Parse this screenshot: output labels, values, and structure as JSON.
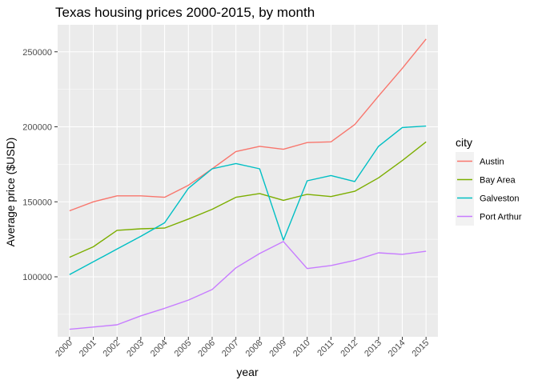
{
  "chart_data": {
    "type": "line",
    "title": "Texas housing prices 2000-2015, by month",
    "xlabel": "year",
    "ylabel": "Average price ($USD)",
    "x": [
      "2000",
      "2001",
      "2002",
      "2003",
      "2004",
      "2005",
      "2006",
      "2007",
      "2008",
      "2009",
      "2010",
      "2011",
      "2012",
      "2013",
      "2014",
      "2015"
    ],
    "ylim": [
      60000,
      268000
    ],
    "yticks": [
      100000,
      150000,
      200000,
      250000
    ],
    "ytick_labels": [
      "100000",
      "150000",
      "200000",
      "250000"
    ],
    "grid": true,
    "legend": {
      "title": "city",
      "placement": "right"
    },
    "series": [
      {
        "name": "Austin",
        "color": "#F8766D",
        "values": [
          144000,
          150000,
          154000,
          154000,
          153000,
          161000,
          172000,
          183500,
          187000,
          185000,
          189500,
          190000,
          201500,
          220500,
          239000,
          258500
        ]
      },
      {
        "name": "Bay Area",
        "color": "#7CAE00",
        "values": [
          113000,
          120000,
          131000,
          132000,
          132500,
          138500,
          145000,
          153000,
          155500,
          151000,
          155000,
          153500,
          157000,
          166000,
          177500,
          190000
        ]
      },
      {
        "name": "Galveston",
        "color": "#00BFC4",
        "values": [
          101500,
          110000,
          118500,
          127000,
          136000,
          159000,
          172000,
          175500,
          172000,
          124500,
          164000,
          167500,
          163500,
          187000,
          199500,
          200500
        ]
      },
      {
        "name": "Port Arthur",
        "color": "#C77CFF",
        "values": [
          65000,
          66500,
          68000,
          74000,
          79000,
          84500,
          91500,
          106000,
          115500,
          123500,
          105500,
          107500,
          111000,
          116000,
          115000,
          117000
        ]
      }
    ]
  }
}
